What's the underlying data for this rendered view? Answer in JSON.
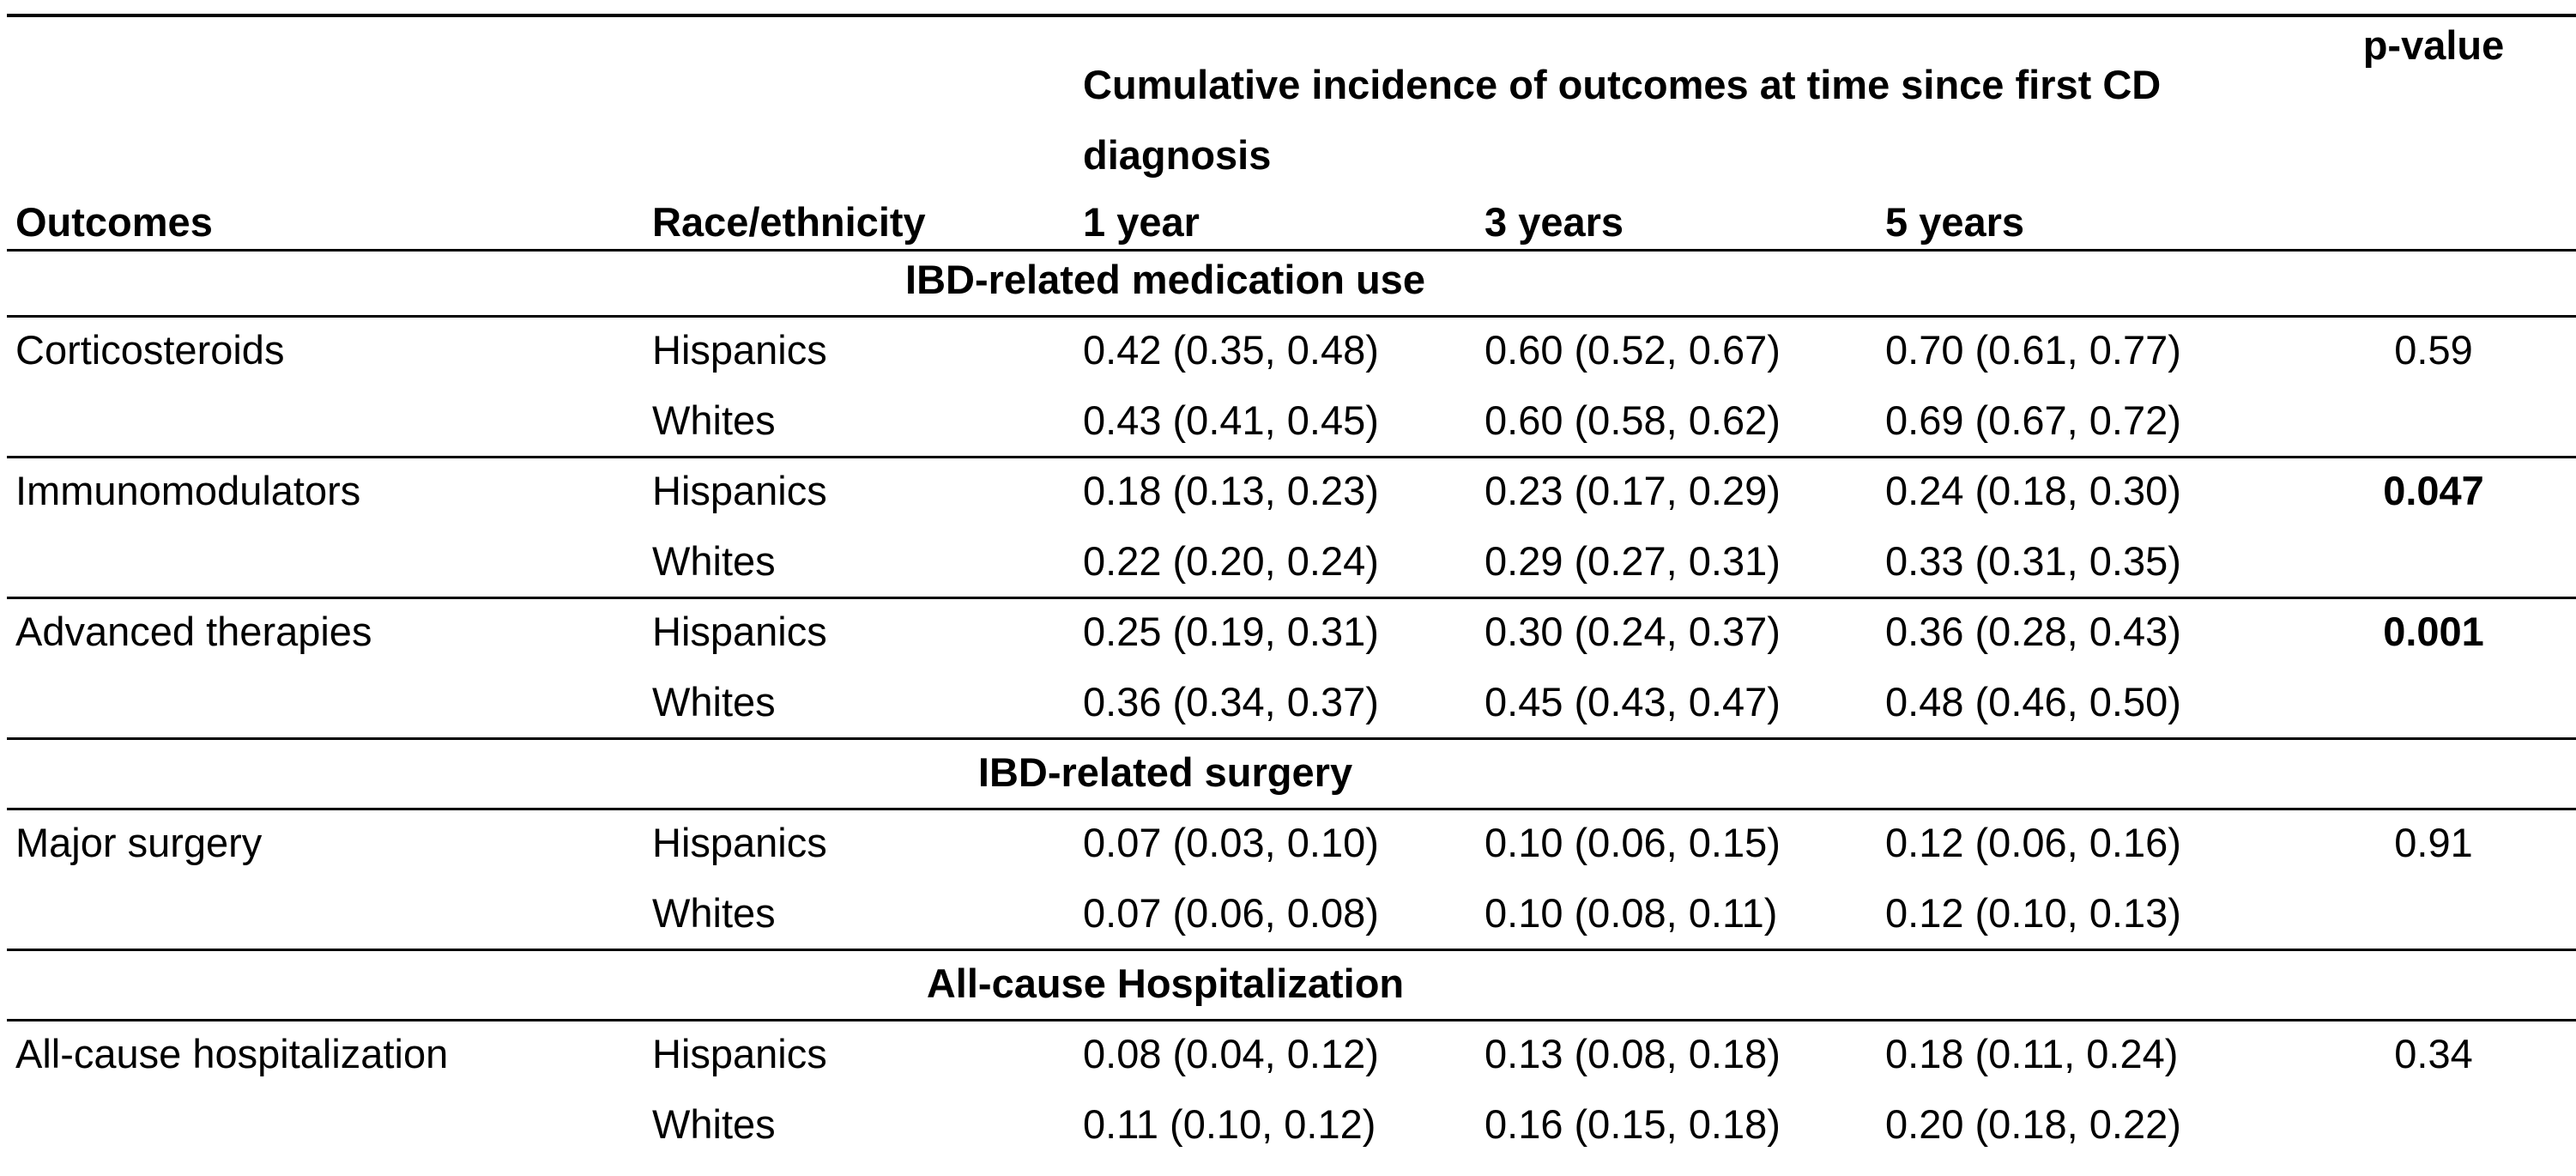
{
  "header": {
    "outcomes": "Outcomes",
    "race": "Race/ethnicity",
    "cumulative": "Cumulative incidence of outcomes at time since first CD diagnosis",
    "year1": "1 year",
    "year3": "3 years",
    "year5": "5 years",
    "pvalue": "p-value"
  },
  "sections": [
    {
      "title": "IBD-related medication use",
      "outcomes": [
        {
          "name": "Corticosteroids",
          "p": "0.59",
          "p_bold": false,
          "rows": [
            {
              "race": "Hispanics",
              "y1": "0.42 (0.35, 0.48)",
              "y3": "0.60 (0.52, 0.67)",
              "y5": "0.70 (0.61, 0.77)"
            },
            {
              "race": "Whites",
              "y1": "0.43 (0.41, 0.45)",
              "y3": "0.60 (0.58, 0.62)",
              "y5": "0.69 (0.67, 0.72)"
            }
          ]
        },
        {
          "name": "Immunomodulators",
          "p": "0.047",
          "p_bold": true,
          "rows": [
            {
              "race": "Hispanics",
              "y1": "0.18 (0.13, 0.23)",
              "y3": "0.23 (0.17, 0.29)",
              "y5": "0.24 (0.18, 0.30)"
            },
            {
              "race": "Whites",
              "y1": "0.22 (0.20, 0.24)",
              "y3": "0.29 (0.27, 0.31)",
              "y5": "0.33 (0.31, 0.35)"
            }
          ]
        },
        {
          "name": "Advanced therapies",
          "p": "0.001",
          "p_bold": true,
          "rows": [
            {
              "race": "Hispanics",
              "y1": "0.25 (0.19, 0.31)",
              "y3": "0.30 (0.24, 0.37)",
              "y5": "0.36 (0.28, 0.43)"
            },
            {
              "race": "Whites",
              "y1": "0.36 (0.34, 0.37)",
              "y3": "0.45 (0.43, 0.47)",
              "y5": "0.48 (0.46, 0.50)"
            }
          ]
        }
      ]
    },
    {
      "title": "IBD-related surgery",
      "outcomes": [
        {
          "name": "Major surgery",
          "p": "0.91",
          "p_bold": false,
          "rows": [
            {
              "race": "Hispanics",
              "y1": "0.07 (0.03, 0.10)",
              "y3": "0.10 (0.06, 0.15)",
              "y5": "0.12 (0.06, 0.16)"
            },
            {
              "race": "Whites",
              "y1": "0.07 (0.06, 0.08)",
              "y3": "0.10 (0.08, 0.11)",
              "y5": "0.12 (0.10, 0.13)"
            }
          ]
        }
      ]
    },
    {
      "title": "All-cause Hospitalization",
      "outcomes": [
        {
          "name": "All-cause hospitalization",
          "p": "0.34",
          "p_bold": false,
          "rows": [
            {
              "race": "Hispanics",
              "y1": "0.08 (0.04, 0.12)",
              "y3": "0.13 (0.08, 0.18)",
              "y5": "0.18 (0.11, 0.24)"
            },
            {
              "race": "Whites",
              "y1": "0.11 (0.10, 0.12)",
              "y3": "0.16 (0.15, 0.18)",
              "y5": "0.20 (0.18, 0.22)"
            }
          ]
        }
      ]
    }
  ]
}
